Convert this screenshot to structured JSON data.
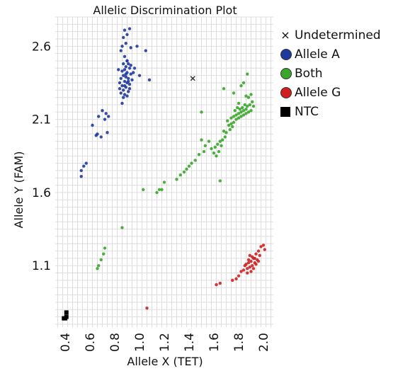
{
  "chart_data": {
    "type": "scatter",
    "title": "Allelic Discrimination Plot",
    "xlabel": "Allele X (TET)",
    "ylabel": "Allele Y (FAM)",
    "xlim": [
      0.32,
      2.08
    ],
    "ylim": [
      0.68,
      2.8
    ],
    "x_ticks": [
      "0.4",
      "0.6",
      "0.8",
      "1.0",
      "1.2",
      "1.4",
      "1.6",
      "1.8",
      "2.0"
    ],
    "y_ticks": [
      "1.1",
      "1.6",
      "2.1",
      "2.6"
    ],
    "grid": true,
    "legend_position": "right",
    "series": [
      {
        "name": "Undetermined",
        "marker": "cross",
        "color": "#333333",
        "points": [
          [
            1.43,
            2.38
          ]
        ]
      },
      {
        "name": "Allele A",
        "marker": "circle",
        "color": "#1f3a9e",
        "points": [
          [
            0.88,
            2.71
          ],
          [
            0.92,
            2.72
          ],
          [
            0.9,
            2.68
          ],
          [
            0.87,
            2.66
          ],
          [
            0.89,
            2.62
          ],
          [
            0.86,
            2.6
          ],
          [
            0.93,
            2.59
          ],
          [
            0.98,
            2.6
          ],
          [
            1.05,
            2.57
          ],
          [
            0.85,
            2.57
          ],
          [
            0.88,
            2.53
          ],
          [
            0.9,
            2.5
          ],
          [
            0.91,
            2.48
          ],
          [
            0.87,
            2.48
          ],
          [
            0.89,
            2.46
          ],
          [
            0.92,
            2.45
          ],
          [
            0.88,
            2.44
          ],
          [
            0.86,
            2.43
          ],
          [
            0.9,
            2.42
          ],
          [
            0.93,
            2.41
          ],
          [
            0.95,
            2.42
          ],
          [
            0.87,
            2.4
          ],
          [
            0.89,
            2.39
          ],
          [
            0.91,
            2.38
          ],
          [
            0.85,
            2.38
          ],
          [
            0.88,
            2.36
          ],
          [
            0.9,
            2.35
          ],
          [
            0.92,
            2.34
          ],
          [
            0.86,
            2.33
          ],
          [
            0.89,
            2.32
          ],
          [
            0.87,
            2.3
          ],
          [
            0.91,
            2.29
          ],
          [
            0.85,
            2.28
          ],
          [
            0.88,
            2.27
          ],
          [
            0.9,
            2.26
          ],
          [
            0.92,
            2.31
          ],
          [
            0.94,
            2.37
          ],
          [
            0.84,
            2.35
          ],
          [
            0.87,
            2.25
          ],
          [
            0.86,
            2.21
          ],
          [
            0.9,
            2.5
          ],
          [
            0.93,
            2.47
          ],
          [
            0.96,
            2.45
          ],
          [
            1.08,
            2.37
          ],
          [
            1.0,
            2.4
          ],
          [
            0.83,
            2.44
          ],
          [
            0.84,
            2.31
          ],
          [
            0.89,
            2.41
          ],
          [
            0.91,
            2.36
          ],
          [
            0.88,
            2.33
          ],
          [
            0.7,
            2.16
          ],
          [
            0.73,
            2.14
          ],
          [
            0.75,
            2.12
          ],
          [
            0.72,
            2.1
          ],
          [
            0.67,
            2.12
          ],
          [
            0.62,
            2.06
          ],
          [
            0.66,
            2.0
          ],
          [
            0.69,
            1.98
          ],
          [
            0.74,
            2.01
          ],
          [
            0.65,
            1.99
          ],
          [
            0.55,
            1.78
          ],
          [
            0.53,
            1.75
          ],
          [
            0.57,
            1.8
          ],
          [
            0.53,
            1.71
          ]
        ]
      },
      {
        "name": "Both",
        "marker": "circle",
        "color": "#3aa62a",
        "points": [
          [
            1.87,
            2.41
          ],
          [
            1.84,
            2.35
          ],
          [
            1.82,
            2.33
          ],
          [
            1.9,
            2.27
          ],
          [
            1.88,
            2.25
          ],
          [
            1.86,
            2.26
          ],
          [
            1.91,
            2.22
          ],
          [
            1.89,
            2.2
          ],
          [
            1.87,
            2.19
          ],
          [
            1.85,
            2.2
          ],
          [
            1.83,
            2.18
          ],
          [
            1.8,
            2.21
          ],
          [
            1.92,
            2.19
          ],
          [
            1.9,
            2.16
          ],
          [
            1.88,
            2.15
          ],
          [
            1.86,
            2.14
          ],
          [
            1.84,
            2.13
          ],
          [
            1.82,
            2.12
          ],
          [
            1.8,
            2.11
          ],
          [
            1.78,
            2.1
          ],
          [
            1.86,
            2.17
          ],
          [
            1.84,
            2.16
          ],
          [
            1.82,
            2.15
          ],
          [
            1.8,
            2.14
          ],
          [
            1.78,
            2.13
          ],
          [
            1.76,
            2.12
          ],
          [
            1.74,
            2.11
          ],
          [
            1.77,
            2.16
          ],
          [
            1.79,
            2.18
          ],
          [
            1.81,
            2.17
          ],
          [
            1.76,
            2.08
          ],
          [
            1.74,
            2.07
          ],
          [
            1.72,
            2.06
          ],
          [
            1.71,
            2.09
          ],
          [
            1.73,
            2.03
          ],
          [
            1.7,
            2.01
          ],
          [
            1.68,
            2.02
          ],
          [
            1.75,
            2.05
          ],
          [
            1.69,
            1.98
          ],
          [
            1.67,
            1.96
          ],
          [
            1.65,
            1.95
          ],
          [
            1.66,
            1.92
          ],
          [
            1.63,
            1.93
          ],
          [
            1.61,
            1.91
          ],
          [
            1.64,
            1.88
          ],
          [
            1.6,
            1.87
          ],
          [
            1.58,
            1.9
          ],
          [
            1.62,
            1.85
          ],
          [
            1.56,
            1.95
          ],
          [
            1.53,
            1.92
          ],
          [
            1.5,
            1.96
          ],
          [
            1.52,
            1.88
          ],
          [
            1.48,
            1.86
          ],
          [
            1.45,
            1.82
          ],
          [
            1.42,
            1.8
          ],
          [
            1.4,
            1.78
          ],
          [
            1.38,
            1.76
          ],
          [
            1.36,
            1.74
          ],
          [
            1.33,
            1.72
          ],
          [
            1.5,
            2.15
          ],
          [
            1.68,
            2.31
          ],
          [
            1.76,
            2.28
          ],
          [
            1.65,
            1.68
          ],
          [
            1.3,
            1.69
          ],
          [
            1.2,
            1.67
          ],
          [
            1.18,
            1.62
          ],
          [
            1.16,
            1.62
          ],
          [
            1.14,
            1.6
          ],
          [
            1.03,
            1.62
          ],
          [
            0.86,
            1.36
          ],
          [
            0.72,
            1.22
          ],
          [
            0.71,
            1.18
          ],
          [
            0.69,
            1.14
          ],
          [
            0.67,
            1.1
          ],
          [
            0.66,
            1.08
          ]
        ]
      },
      {
        "name": "Allele G",
        "marker": "circle",
        "color": "#d11f1f",
        "points": [
          [
            1.98,
            1.23
          ],
          [
            2.0,
            1.24
          ],
          [
            1.96,
            1.2
          ],
          [
            2.01,
            1.21
          ],
          [
            1.94,
            1.18
          ],
          [
            1.97,
            1.17
          ],
          [
            1.92,
            1.15
          ],
          [
            1.95,
            1.14
          ],
          [
            1.9,
            1.13
          ],
          [
            1.93,
            1.12
          ],
          [
            1.88,
            1.12
          ],
          [
            1.91,
            1.1
          ],
          [
            1.89,
            1.09
          ],
          [
            1.87,
            1.08
          ],
          [
            1.92,
            1.08
          ],
          [
            1.9,
            1.06
          ],
          [
            1.94,
            1.11
          ],
          [
            1.96,
            1.13
          ],
          [
            1.86,
            1.11
          ],
          [
            1.88,
            1.14
          ],
          [
            1.91,
            1.16
          ],
          [
            1.93,
            1.15
          ],
          [
            1.89,
            1.17
          ],
          [
            1.85,
            1.1
          ],
          [
            1.87,
            1.05
          ],
          [
            1.84,
            1.07
          ],
          [
            1.82,
            1.06
          ],
          [
            1.8,
            1.03
          ],
          [
            1.78,
            1.01
          ],
          [
            1.75,
            1.0
          ],
          [
            1.65,
            0.98
          ],
          [
            1.62,
            0.97
          ],
          [
            1.06,
            0.81
          ]
        ]
      },
      {
        "name": "NTC",
        "marker": "square",
        "color": "#000000",
        "points": [
          [
            0.4,
            0.74
          ],
          [
            0.39,
            0.74
          ],
          [
            0.41,
            0.75
          ],
          [
            0.41,
            0.78
          ]
        ]
      }
    ]
  }
}
